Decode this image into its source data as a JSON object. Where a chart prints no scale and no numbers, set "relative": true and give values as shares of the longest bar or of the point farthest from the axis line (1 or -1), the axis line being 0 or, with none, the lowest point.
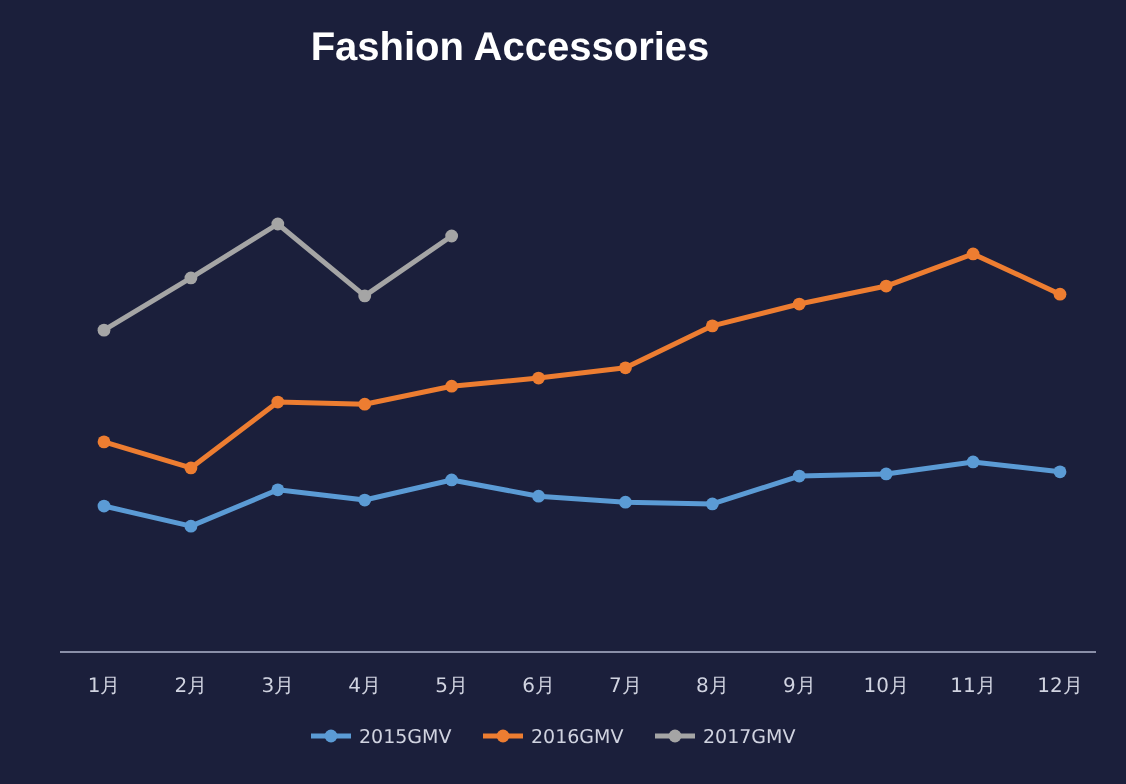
{
  "chart_data": {
    "type": "line",
    "title": "Fashion Accessories",
    "categories": [
      "1月",
      "2月",
      "3月",
      "4月",
      "5月",
      "6月",
      "7月",
      "8月",
      "9月",
      "10月",
      "11月",
      "12月"
    ],
    "relative": true,
    "legend": "bottom",
    "marker": "circle",
    "series": [
      {
        "name": "2015GMV",
        "color": "#5b9bd5",
        "values": [
          0.341,
          0.294,
          0.379,
          0.355,
          0.402,
          0.364,
          0.35,
          0.346,
          0.411,
          0.416,
          0.444,
          0.421
        ]
      },
      {
        "name": "2016GMV",
        "color": "#ed7d31",
        "values": [
          0.491,
          0.43,
          0.584,
          0.579,
          0.621,
          0.64,
          0.664,
          0.762,
          0.813,
          0.855,
          0.93,
          0.836
        ]
      },
      {
        "name": "2017GMV",
        "color": "#a5a5a5",
        "values": [
          0.752,
          0.874,
          1,
          0.832,
          0.972,
          null,
          null,
          null,
          null,
          null,
          null,
          null
        ]
      }
    ]
  }
}
